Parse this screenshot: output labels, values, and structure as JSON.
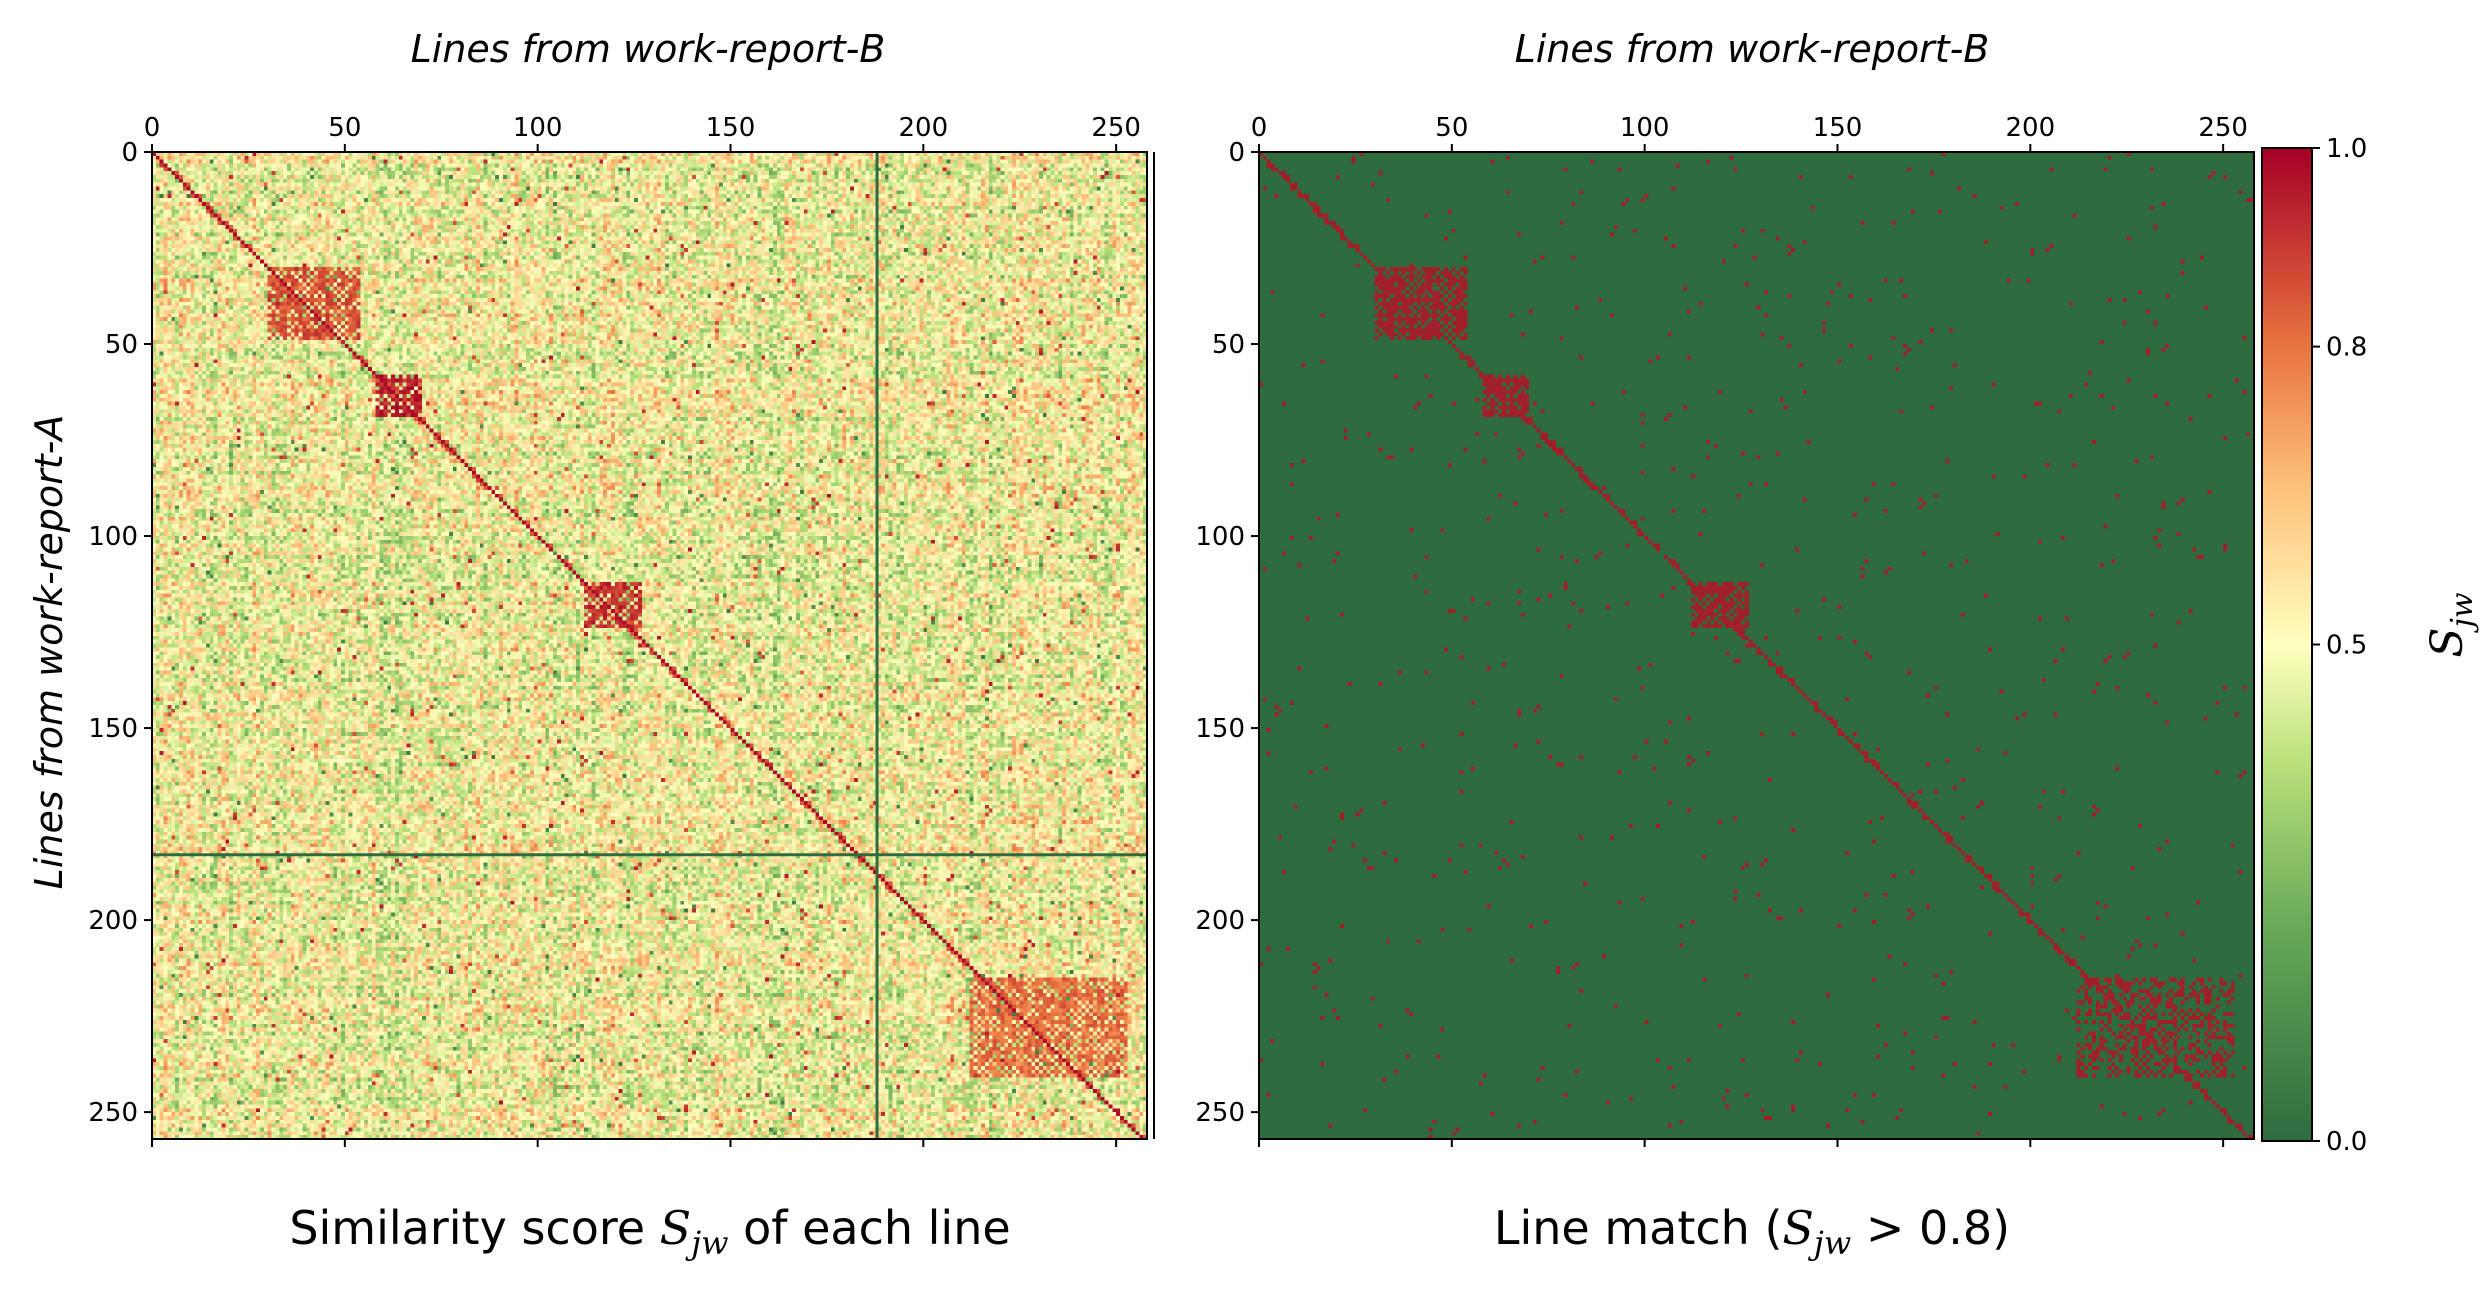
{
  "chart_data": [
    {
      "type": "heatmap",
      "caption": {
        "pre": "Similarity score ",
        "sym": "S",
        "sub": "jw",
        "post": " of each line"
      },
      "xlabel": "Lines from work-report-B",
      "ylabel": "Lines from work-report-A",
      "x_ticks": [
        "0",
        "50",
        "100",
        "150",
        "200",
        "250"
      ],
      "y_ticks": [
        "0",
        "50",
        "100",
        "150",
        "200",
        "250"
      ],
      "xlim": [
        0,
        258
      ],
      "ylim": [
        0,
        257
      ],
      "x_tick_positions": [
        0,
        50,
        100,
        150,
        200,
        250
      ],
      "y_tick_positions": [
        0,
        50,
        100,
        150,
        200,
        250
      ],
      "value_range": [
        0,
        1
      ],
      "highlight_row": 183,
      "highlight_col": 188,
      "blocks": [
        {
          "rows": [
            58,
            68
          ],
          "cols": [
            58,
            69
          ],
          "level": 0.88
        },
        {
          "rows": [
            112,
            123
          ],
          "cols": [
            112,
            126
          ],
          "level": 0.85
        },
        {
          "rows": [
            30,
            48
          ],
          "cols": [
            30,
            53
          ],
          "level": 0.8
        },
        {
          "rows": [
            215,
            240
          ],
          "cols": [
            212,
            252
          ],
          "level": 0.75
        }
      ],
      "colormap": "RdYlGn_r"
    },
    {
      "type": "heatmap",
      "caption": {
        "pre": "Line match (",
        "sym": "S",
        "sub": "jw",
        "post": " > 0.8)"
      },
      "xlabel": "Lines from work-report-B",
      "x_ticks": [
        "0",
        "50",
        "100",
        "150",
        "200",
        "250"
      ],
      "y_ticks": [
        "0",
        "50",
        "100",
        "150",
        "200",
        "250"
      ],
      "xlim": [
        0,
        258
      ],
      "ylim": [
        0,
        257
      ],
      "x_tick_positions": [
        0,
        50,
        100,
        150,
        200,
        250
      ],
      "y_tick_positions": [
        0,
        50,
        100,
        150,
        200,
        250
      ],
      "threshold": 0.8,
      "background_color": "#2e6b3f",
      "match_color": "#a0202a"
    }
  ],
  "colorbar": {
    "label_sym": "S",
    "label_sub": "jw",
    "ticks": [
      "0.0",
      "0.5",
      "0.8",
      "1.0"
    ],
    "tick_values": [
      0.0,
      0.5,
      0.8,
      1.0
    ],
    "colors": [
      "#2e6b3f",
      "#6aaa58",
      "#b9e07a",
      "#ffffbf",
      "#fdc07a",
      "#e8743e",
      "#a50026"
    ]
  },
  "colors": {
    "separator_line": "#2e6b3f",
    "frame": "#000000"
  }
}
